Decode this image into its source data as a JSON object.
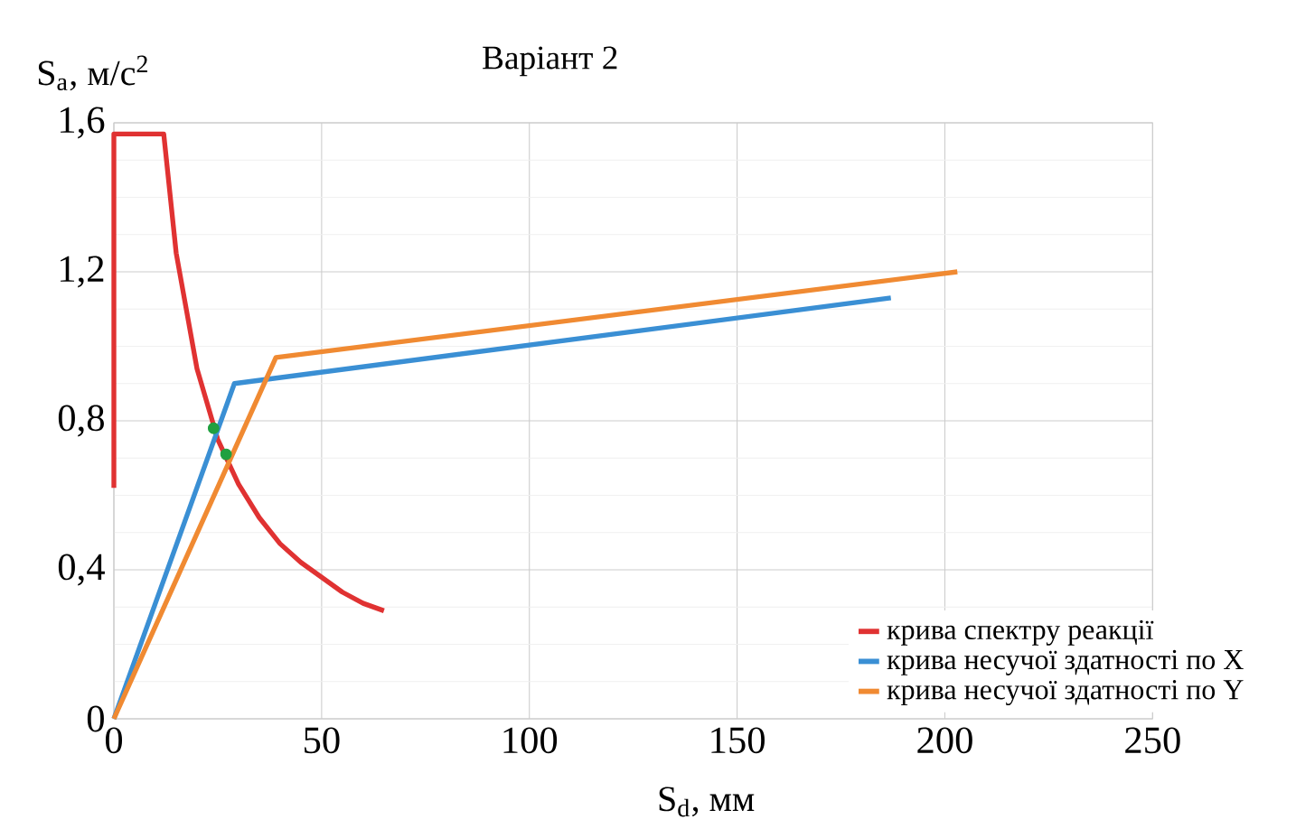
{
  "chart_data": {
    "type": "line",
    "title": "Варіант 2",
    "xlabel": "S$_{d}$, мм",
    "ylabel": "S$_{a}$, м/с$^{2}$",
    "xlim": [
      0,
      250
    ],
    "ylim": [
      0,
      1.6
    ],
    "xticks": [
      0,
      50,
      100,
      150,
      200,
      250
    ],
    "yticks": [
      0,
      {
        "value": 0.4,
        "label": "0,4"
      },
      {
        "value": 0.8,
        "label": "0,8"
      },
      {
        "value": 1.2,
        "label": "1,2"
      },
      {
        "value": 1.6,
        "label": "1,6"
      }
    ],
    "grid": true,
    "legend": "bottom right",
    "series": [
      {
        "name": "крива спектру реакції",
        "color": "#e03232",
        "x": [
          0,
          0,
          12,
          15,
          20,
          25,
          30,
          35,
          40,
          45,
          50,
          55,
          60,
          65
        ],
        "values": [
          0.62,
          1.57,
          1.57,
          1.25,
          0.94,
          0.75,
          0.63,
          0.54,
          0.47,
          0.42,
          0.38,
          0.34,
          0.31,
          0.29
        ]
      },
      {
        "name": "крива несучої здатності по X",
        "color": "#3a8fd4",
        "x": [
          0,
          29,
          187
        ],
        "values": [
          0,
          0.9,
          1.13
        ]
      },
      {
        "name": "крива несучої здатності по Y",
        "color": "#f08a32",
        "x": [
          0,
          39,
          203
        ],
        "values": [
          0,
          0.97,
          1.2
        ]
      },
      {
        "type": "scatter",
        "marker": "circle",
        "color": "#20a040",
        "x": [
          24,
          27
        ],
        "values": [
          0.78,
          0.71
        ]
      }
    ]
  }
}
